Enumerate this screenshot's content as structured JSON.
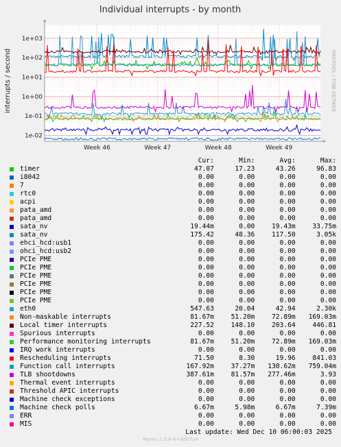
{
  "chart_data": {
    "type": "line",
    "title": "Individual interrupts - by month",
    "ylabel": "interrupts / second",
    "yscale": "log",
    "ylim": [
      0.005,
      5000
    ],
    "yticks": [
      "1e-02",
      "1e-01",
      "1e+00",
      "1e+01",
      "1e+02",
      "1e+03"
    ],
    "xticks": [
      "Week 46",
      "Week 47",
      "Week 48",
      "Week 49"
    ],
    "side_label": "RRDTOOL / TOBI OETIKER",
    "grid": true,
    "legend_placement": "below",
    "columns": [
      "Cur:",
      "Min:",
      "Avg:",
      "Max:"
    ],
    "series": [
      {
        "name": "timer",
        "color": "#00cc00",
        "cur": "47.07",
        "min": "17.23",
        "avg": "43.26",
        "max": "96.83"
      },
      {
        "name": "i8042",
        "color": "#0066b3",
        "cur": "0.00",
        "min": "0.00",
        "avg": "0.00",
        "max": "0.00"
      },
      {
        "name": "7",
        "color": "#ff8000",
        "cur": "0.00",
        "min": "0.00",
        "avg": "0.00",
        "max": "0.00"
      },
      {
        "name": "rtc0",
        "color": "#33cccc",
        "cur": "0.00",
        "min": "0.00",
        "avg": "0.00",
        "max": "0.00"
      },
      {
        "name": "acpi",
        "color": "#ffcc00",
        "cur": "0.00",
        "min": "0.00",
        "avg": "0.00",
        "max": "0.00"
      },
      {
        "name": "pata_amd",
        "color": "#ff9933",
        "cur": "0.00",
        "min": "0.00",
        "avg": "0.00",
        "max": "0.00"
      },
      {
        "name": "pata_amd",
        "color": "#cc3300",
        "cur": "0.00",
        "min": "0.00",
        "avg": "0.00",
        "max": "0.00"
      },
      {
        "name": "sata_nv",
        "color": "#0000cc",
        "cur": "19.44m",
        "min": "0.00",
        "avg": "19.43m",
        "max": "33.75m"
      },
      {
        "name": "sata_nv",
        "color": "#008ccf",
        "cur": "175.42",
        "min": "48.36",
        "avg": "117.50",
        "max": "3.05k"
      },
      {
        "name": "ehci_hcd:usb1",
        "color": "#8080ff",
        "cur": "0.00",
        "min": "0.00",
        "avg": "0.00",
        "max": "0.00"
      },
      {
        "name": "ohci_hcd:usb2",
        "color": "#6699ff",
        "cur": "0.00",
        "min": "0.00",
        "avg": "0.00",
        "max": "0.00"
      },
      {
        "name": "PCIe PME",
        "color": "#330099",
        "cur": "0.00",
        "min": "0.00",
        "avg": "0.00",
        "max": "0.00"
      },
      {
        "name": "PCIe PME",
        "color": "#00cc33",
        "cur": "0.00",
        "min": "0.00",
        "avg": "0.00",
        "max": "0.00"
      },
      {
        "name": "PCIe PME",
        "color": "#4d7f8c",
        "cur": "0.00",
        "min": "0.00",
        "avg": "0.00",
        "max": "0.00"
      },
      {
        "name": "PCIe PME",
        "color": "#8c7f3f",
        "cur": "0.00",
        "min": "0.00",
        "avg": "0.00",
        "max": "0.00"
      },
      {
        "name": "PCIe PME",
        "color": "#000000",
        "cur": "0.00",
        "min": "0.00",
        "avg": "0.00",
        "max": "0.00"
      },
      {
        "name": "PCIe PME",
        "color": "#66cc33",
        "cur": "0.00",
        "min": "0.00",
        "avg": "0.00",
        "max": "0.00"
      },
      {
        "name": "eth0",
        "color": "#3399cc",
        "cur": "547.63",
        "min": "20.04",
        "avg": "42.94",
        "max": "2.30k"
      },
      {
        "name": "Non-maskable interrupts",
        "color": "#ff8c1a",
        "cur": "81.67m",
        "min": "51.20m",
        "avg": "72.89m",
        "max": "169.03m"
      },
      {
        "name": "Local timer interrupts",
        "color": "#660000",
        "cur": "227.52",
        "min": "148.10",
        "avg": "203.64",
        "max": "446.81"
      },
      {
        "name": "Spurious interrupts",
        "color": "#ff33cc",
        "cur": "0.00",
        "min": "0.00",
        "avg": "0.00",
        "max": "0.00"
      },
      {
        "name": "Performance monitoring interrupts",
        "color": "#33cc33",
        "cur": "81.67m",
        "min": "51.20m",
        "avg": "72.89m",
        "max": "169.03m"
      },
      {
        "name": "IRQ work interrupts",
        "color": "#0000ff",
        "cur": "0.00",
        "min": "0.00",
        "avg": "0.00",
        "max": "0.00"
      },
      {
        "name": "Rescheduling interrupts",
        "color": "#ff0000",
        "cur": "71.50",
        "min": "8.30",
        "avg": "19.96",
        "max": "841.03"
      },
      {
        "name": "Function call interrupts",
        "color": "#1a99cc",
        "cur": "167.92m",
        "min": "37.27m",
        "avg": "130.62m",
        "max": "759.04m"
      },
      {
        "name": "TLB shootdowns",
        "color": "#cc00cc",
        "cur": "387.61m",
        "min": "81.57m",
        "avg": "277.46m",
        "max": "3.93"
      },
      {
        "name": "Thermal event interrupts",
        "color": "#ffa500",
        "cur": "0.00",
        "min": "0.00",
        "avg": "0.00",
        "max": "0.00"
      },
      {
        "name": "Threshold APIC interrupts",
        "color": "#cc3300",
        "cur": "0.00",
        "min": "0.00",
        "avg": "0.00",
        "max": "0.00"
      },
      {
        "name": "Machine check exceptions",
        "color": "#0000cc",
        "cur": "0.00",
        "min": "0.00",
        "avg": "0.00",
        "max": "0.00"
      },
      {
        "name": "Machine check polls",
        "color": "#0077cc",
        "cur": "6.67m",
        "min": "5.98m",
        "avg": "6.67m",
        "max": "7.39m"
      },
      {
        "name": "ERR",
        "color": "#8080ff",
        "cur": "0.00",
        "min": "0.00",
        "avg": "0.00",
        "max": "0.00"
      },
      {
        "name": "MIS",
        "color": "#ff0080",
        "cur": "0.00",
        "min": "0.00",
        "avg": "0.00",
        "max": "0.00"
      }
    ]
  },
  "footer": {
    "last_update": "Last update:  Wed Dec 10 06:00:03 2025",
    "munin": "Munin 2.0.6-4+deb7u4"
  }
}
